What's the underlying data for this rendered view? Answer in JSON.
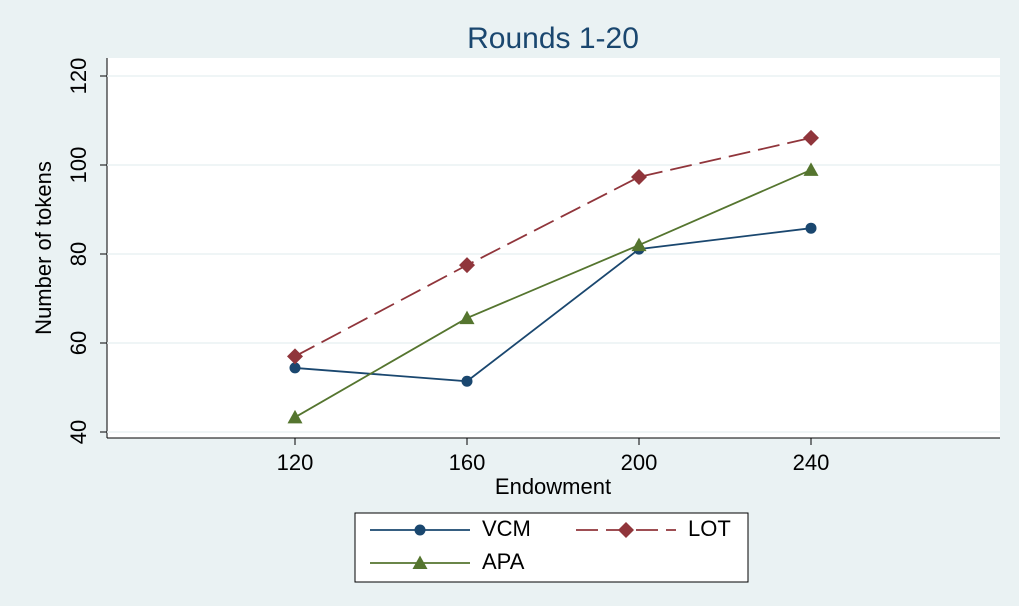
{
  "chart_data": {
    "type": "line",
    "title": "Rounds 1-20",
    "x_label": "Endowment",
    "y_label": "Number of tokens",
    "x": [
      120,
      160,
      200,
      240
    ],
    "xlim": [
      120,
      240
    ],
    "xticks": [
      120,
      160,
      200,
      240
    ],
    "ylim": [
      40,
      120
    ],
    "yticks": [
      40,
      60,
      80,
      100,
      120
    ],
    "grid": true,
    "legend": "bottom",
    "series": [
      {
        "name": "VCM",
        "color": "#1a476f",
        "values": [
          54.4,
          51.4,
          81.1,
          85.8
        ]
      },
      {
        "name": "LOT",
        "color": "#90353b",
        "values": [
          57,
          77.5,
          97.3,
          106.1
        ]
      },
      {
        "name": "APA",
        "color": "#55752f",
        "values": [
          43.3,
          65.6,
          82,
          98.9
        ]
      }
    ]
  }
}
